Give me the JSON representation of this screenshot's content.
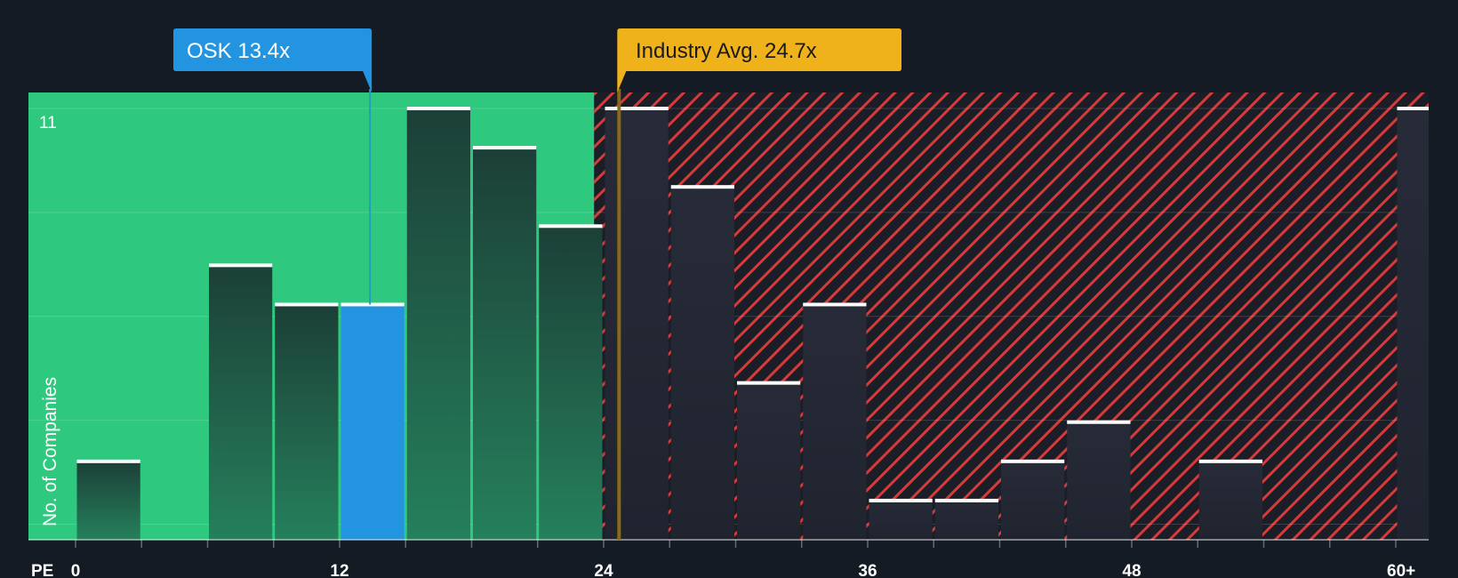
{
  "chart_data": {
    "type": "bar",
    "title": "",
    "xlabel": "PE",
    "ylabel": "No. of Companies",
    "y_tick_label": "11",
    "ylim": [
      0,
      11
    ],
    "xlim": [
      0,
      61.5
    ],
    "x_ticks": [
      {
        "value": 0,
        "label": "0"
      },
      {
        "value": 12,
        "label": "12"
      },
      {
        "value": 24,
        "label": "24"
      },
      {
        "value": 36,
        "label": "36"
      },
      {
        "value": 48,
        "label": "48"
      },
      {
        "value": 60,
        "label": "60+"
      }
    ],
    "bin_width": 3,
    "bins": [
      {
        "start": 0,
        "value": 2
      },
      {
        "start": 3,
        "value": 0
      },
      {
        "start": 6,
        "value": 7
      },
      {
        "start": 9,
        "value": 6
      },
      {
        "start": 12,
        "value": 6,
        "highlight": true
      },
      {
        "start": 15,
        "value": 11
      },
      {
        "start": 18,
        "value": 10
      },
      {
        "start": 21,
        "value": 8
      },
      {
        "start": 24,
        "value": 11
      },
      {
        "start": 27,
        "value": 9
      },
      {
        "start": 30,
        "value": 4
      },
      {
        "start": 33,
        "value": 6
      },
      {
        "start": 36,
        "value": 1
      },
      {
        "start": 39,
        "value": 1
      },
      {
        "start": 42,
        "value": 2
      },
      {
        "start": 45,
        "value": 3
      },
      {
        "start": 48,
        "value": 0
      },
      {
        "start": 51,
        "value": 2
      },
      {
        "start": 54,
        "value": 0
      },
      {
        "start": 57,
        "value": 0
      },
      {
        "start": 60,
        "value": 11
      }
    ],
    "company": {
      "label": "OSK 13.4x",
      "value": 13.4
    },
    "industry_avg": {
      "label": "Industry Avg. 24.7x",
      "value": 24.7
    },
    "colors": {
      "background": "#151b24",
      "green_zone": "#2ec97e",
      "bar_dark": "#1f3d35",
      "highlight": "#2394e0",
      "red_hatch": "#d63a3a",
      "company_callout": "#2394e0",
      "industry_callout": "#f0b21a"
    }
  }
}
